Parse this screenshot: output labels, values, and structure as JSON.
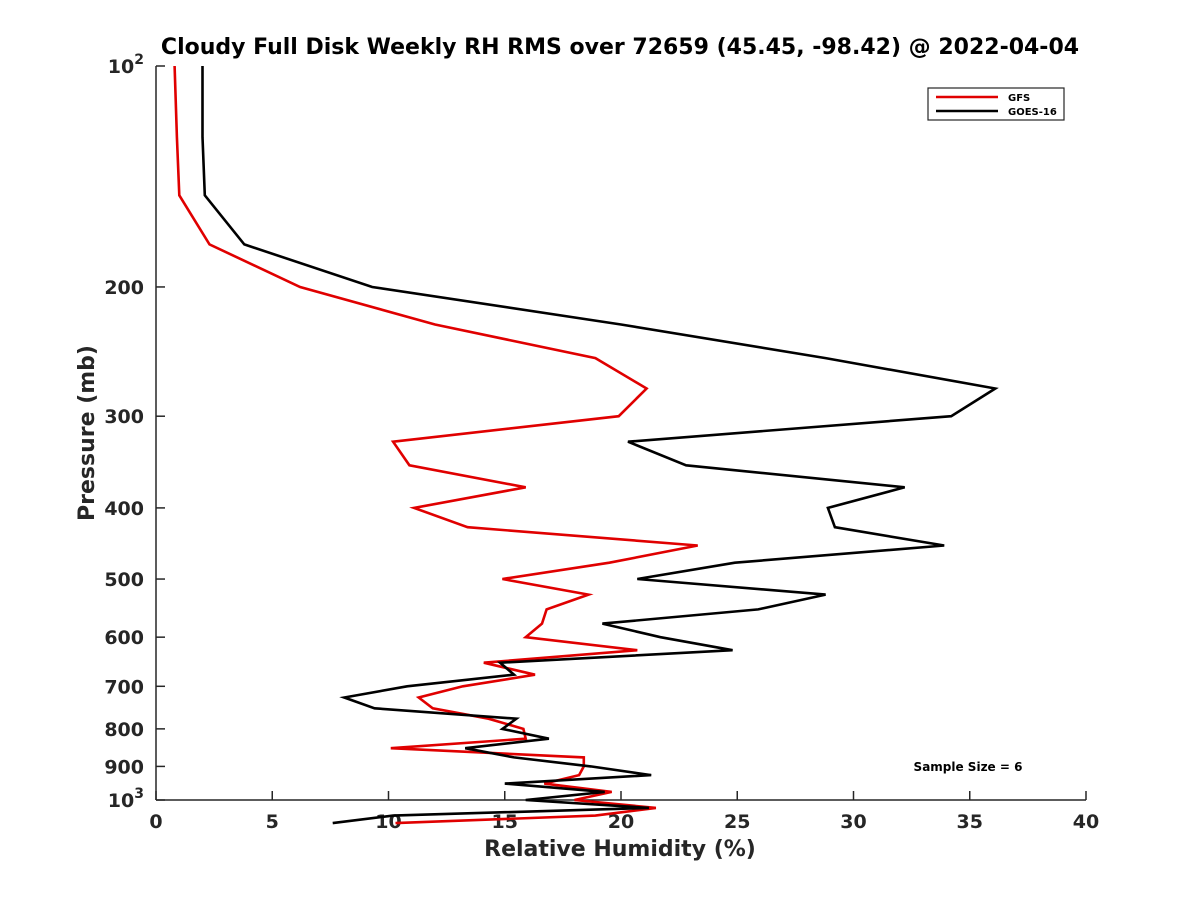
{
  "chart_data": {
    "type": "line",
    "title": "Cloudy Full Disk Weekly RH RMS over 72659 (45.45, -98.42) @ 2022-04-04",
    "xlabel": "Relative Humidity (%)",
    "ylabel": "Pressure (mb)",
    "xlim": [
      0,
      40
    ],
    "ylim": [
      100,
      1000
    ],
    "yscale": "log",
    "yreversed": true,
    "grid": false,
    "legend_position": "top-right",
    "annotation": "Sample Size = 6",
    "x_ticks": [
      "0",
      "5",
      "10",
      "15",
      "20",
      "25",
      "30",
      "35",
      "40"
    ],
    "y_ticks": [
      {
        "value": 100,
        "base": "10",
        "exp": "2"
      },
      {
        "value": 200,
        "label": "200"
      },
      {
        "value": 300,
        "label": "300"
      },
      {
        "value": 400,
        "label": "400"
      },
      {
        "value": 500,
        "label": "500"
      },
      {
        "value": 600,
        "label": "600"
      },
      {
        "value": 700,
        "label": "700"
      },
      {
        "value": 800,
        "label": "800"
      },
      {
        "value": 900,
        "label": "900"
      },
      {
        "value": 1000,
        "base": "10",
        "exp": "3"
      }
    ],
    "series": [
      {
        "name": "GFS",
        "color": "#e00000",
        "points": [
          [
            0.8,
            100
          ],
          [
            0.9,
            125
          ],
          [
            1.0,
            150
          ],
          [
            2.3,
            175
          ],
          [
            6.2,
            200
          ],
          [
            12.0,
            225
          ],
          [
            18.9,
            250
          ],
          [
            21.1,
            275
          ],
          [
            19.9,
            300
          ],
          [
            10.2,
            325
          ],
          [
            10.9,
            350
          ],
          [
            15.9,
            375
          ],
          [
            11.1,
            400
          ],
          [
            13.4,
            425
          ],
          [
            23.3,
            450
          ],
          [
            19.5,
            475
          ],
          [
            14.9,
            500
          ],
          [
            18.6,
            525
          ],
          [
            16.8,
            550
          ],
          [
            16.6,
            575
          ],
          [
            15.9,
            600
          ],
          [
            20.7,
            625
          ],
          [
            14.1,
            650
          ],
          [
            16.3,
            675
          ],
          [
            13.2,
            700
          ],
          [
            11.3,
            725
          ],
          [
            11.9,
            750
          ],
          [
            14.3,
            775
          ],
          [
            15.8,
            800
          ],
          [
            15.9,
            825
          ],
          [
            10.1,
            850
          ],
          [
            18.4,
            875
          ],
          [
            18.4,
            900
          ],
          [
            18.2,
            925
          ],
          [
            16.7,
            950
          ],
          [
            19.6,
            975
          ],
          [
            18.0,
            1000
          ],
          [
            21.5,
            1025
          ],
          [
            18.9,
            1050
          ],
          [
            10.3,
            1075
          ]
        ]
      },
      {
        "name": "GOES-16",
        "color": "#000000",
        "points": [
          [
            2.0,
            100
          ],
          [
            2.0,
            125
          ],
          [
            2.1,
            150
          ],
          [
            3.8,
            175
          ],
          [
            9.3,
            200
          ],
          [
            20.0,
            225
          ],
          [
            28.8,
            250
          ],
          [
            36.1,
            275
          ],
          [
            34.2,
            300
          ],
          [
            20.3,
            325
          ],
          [
            22.8,
            350
          ],
          [
            32.2,
            375
          ],
          [
            28.9,
            400
          ],
          [
            29.2,
            425
          ],
          [
            33.9,
            450
          ],
          [
            24.9,
            475
          ],
          [
            20.7,
            500
          ],
          [
            28.8,
            525
          ],
          [
            25.9,
            550
          ],
          [
            19.2,
            575
          ],
          [
            21.7,
            600
          ],
          [
            24.8,
            625
          ],
          [
            14.8,
            650
          ],
          [
            15.4,
            675
          ],
          [
            10.8,
            700
          ],
          [
            8.1,
            725
          ],
          [
            9.4,
            750
          ],
          [
            15.5,
            775
          ],
          [
            14.9,
            800
          ],
          [
            16.9,
            825
          ],
          [
            13.3,
            850
          ],
          [
            15.4,
            875
          ],
          [
            18.7,
            900
          ],
          [
            21.3,
            925
          ],
          [
            15.0,
            950
          ],
          [
            19.3,
            975
          ],
          [
            15.9,
            1000
          ],
          [
            21.2,
            1025
          ],
          [
            10.2,
            1050
          ],
          [
            7.6,
            1075
          ]
        ]
      }
    ]
  }
}
